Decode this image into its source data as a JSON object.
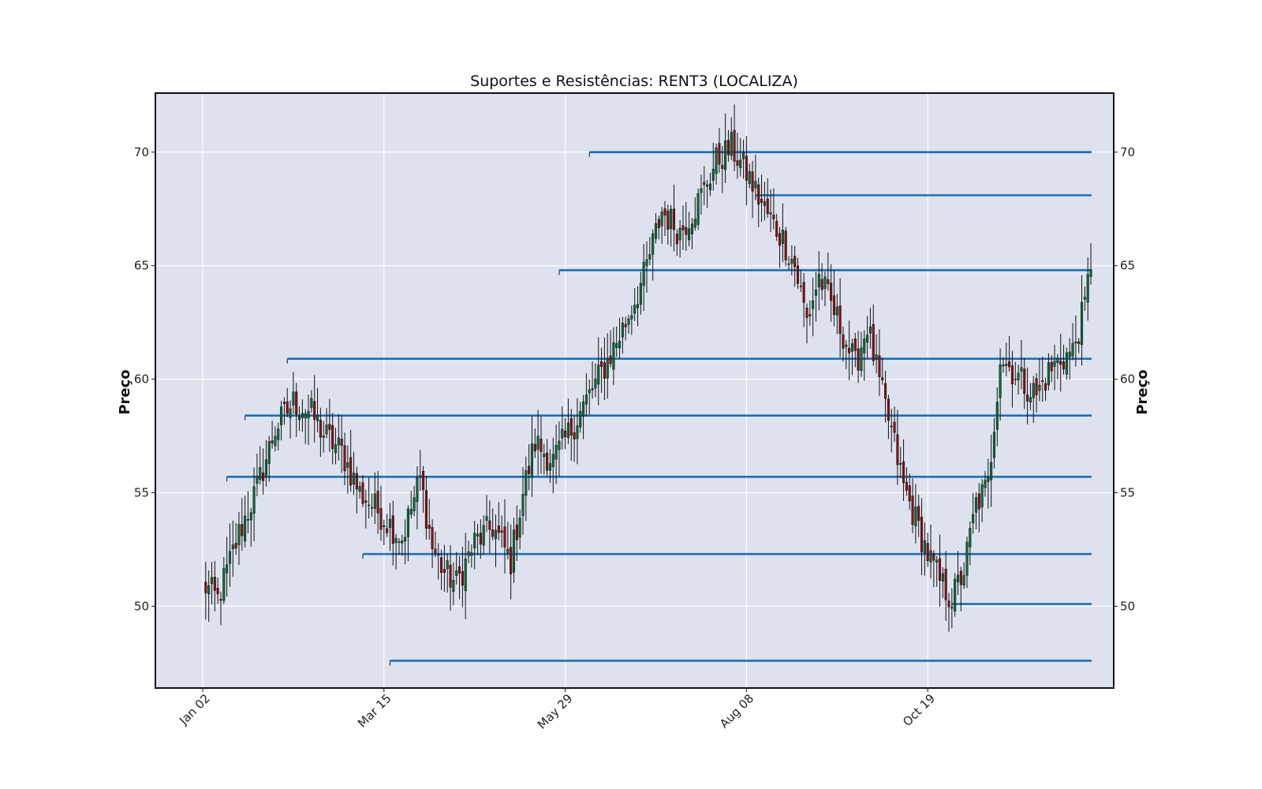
{
  "chart_data": {
    "type": "candlestick",
    "title": "Suportes e Resistências: RENT3 (LOCALIZA)",
    "ylabel_left": "Preço",
    "ylabel_right": "Preço",
    "xlabel": "",
    "ylim": [
      46.4,
      72.6
    ],
    "yticks": [
      50,
      55,
      60,
      65,
      70
    ],
    "xtick_labels": [
      "Jan 02",
      "Mar 15",
      "May 29",
      "Aug 08",
      "Oct 19"
    ],
    "grid": true,
    "background_color": "#dde2ee",
    "up_color": "#0b6b3a",
    "down_color": "#8b0f14",
    "level_color": "#1f6fb2",
    "xrange": {
      "start_index": 0,
      "end_index": 240
    },
    "key_closes": [
      [
        0,
        51.0
      ],
      [
        5,
        50.3
      ],
      [
        12,
        53.2
      ],
      [
        18,
        55.2
      ],
      [
        24,
        57.8
      ],
      [
        30,
        59.0
      ],
      [
        36,
        58.5
      ],
      [
        40,
        57.6
      ],
      [
        46,
        56.8
      ],
      [
        52,
        55.0
      ],
      [
        58,
        54.2
      ],
      [
        66,
        53.0
      ],
      [
        72,
        55.6
      ],
      [
        76,
        52.6
      ],
      [
        80,
        51.5
      ],
      [
        84,
        51.0
      ],
      [
        90,
        52.8
      ],
      [
        96,
        53.5
      ],
      [
        102,
        52.0
      ],
      [
        106,
        55.0
      ],
      [
        110,
        57.2
      ],
      [
        116,
        56.4
      ],
      [
        122,
        57.8
      ],
      [
        128,
        59.3
      ],
      [
        134,
        60.8
      ],
      [
        140,
        62.5
      ],
      [
        146,
        64.5
      ],
      [
        152,
        67.4
      ],
      [
        158,
        66.5
      ],
      [
        164,
        67.8
      ],
      [
        170,
        69.6
      ],
      [
        175,
        70.2
      ],
      [
        180,
        69.1
      ],
      [
        184,
        68.0
      ],
      [
        188,
        67.0
      ],
      [
        192,
        66.2
      ],
      [
        196,
        65.0
      ],
      [
        200,
        62.6
      ],
      [
        204,
        64.5
      ],
      [
        208,
        63.3
      ],
      [
        212,
        62.0
      ],
      [
        216,
        60.6
      ],
      [
        220,
        62.4
      ],
      [
        224,
        59.8
      ],
      [
        228,
        57.7
      ],
      [
        232,
        55.3
      ],
      [
        236,
        53.8
      ],
      [
        240,
        52.3
      ],
      [
        244,
        51.1
      ],
      [
        248,
        50.3
      ],
      [
        252,
        51.6
      ],
      [
        256,
        54.5
      ],
      [
        260,
        55.3
      ],
      [
        264,
        61.0
      ],
      [
        268,
        60.4
      ],
      [
        272,
        59.8
      ],
      [
        276,
        59.3
      ],
      [
        280,
        60.3
      ],
      [
        284,
        60.9
      ],
      [
        288,
        61.2
      ],
      [
        292,
        63.2
      ],
      [
        294,
        65.2
      ]
    ],
    "last_index": 294,
    "levels": [
      {
        "y": 70.0,
        "start": 128
      },
      {
        "y": 68.1,
        "start": 183
      },
      {
        "y": 64.8,
        "start": 118
      },
      {
        "y": 60.9,
        "start": 28
      },
      {
        "y": 58.4,
        "start": 14
      },
      {
        "y": 55.7,
        "start": 8
      },
      {
        "y": 52.3,
        "start": 53
      },
      {
        "y": 50.1,
        "start": 248
      },
      {
        "y": 47.6,
        "start": 62
      }
    ]
  }
}
